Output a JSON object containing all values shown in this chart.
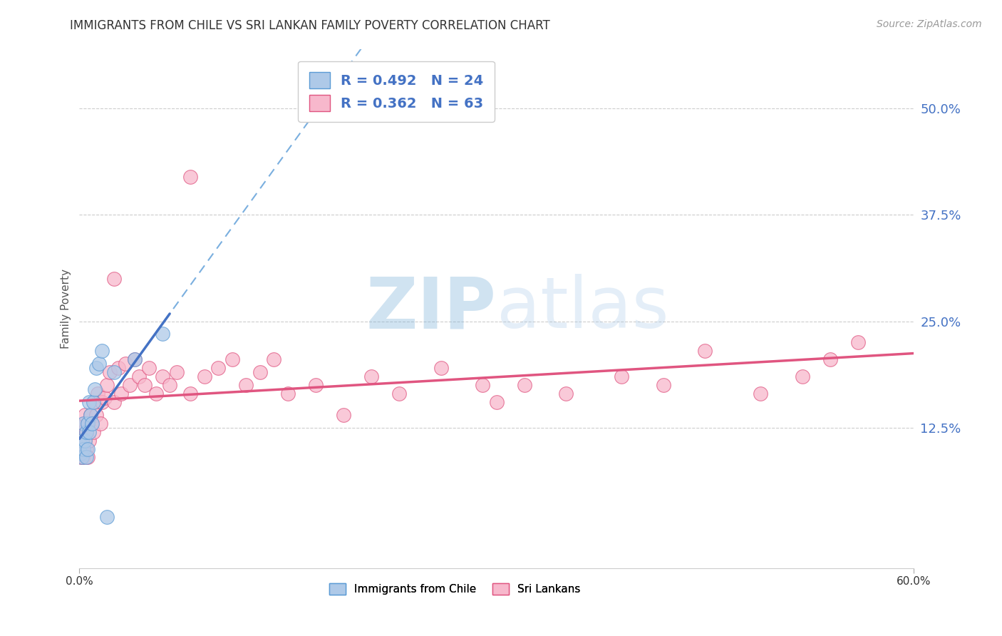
{
  "title": "IMMIGRANTS FROM CHILE VS SRI LANKAN FAMILY POVERTY CORRELATION CHART",
  "source": "Source: ZipAtlas.com",
  "ylabel": "Family Poverty",
  "xlim": [
    0,
    0.6
  ],
  "ylim": [
    -0.04,
    0.57
  ],
  "yticks": [
    0.125,
    0.25,
    0.375,
    0.5
  ],
  "ytick_labels": [
    "12.5%",
    "25.0%",
    "37.5%",
    "50.0%"
  ],
  "xtick_labels": [
    "0.0%",
    "60.0%"
  ],
  "xtick_pos": [
    0.0,
    0.6
  ],
  "chile_color": "#aec9e8",
  "chile_edge_color": "#5b9bd5",
  "srilanka_color": "#f7b8cc",
  "srilanka_edge_color": "#e05580",
  "chile_line_color": "#4472c4",
  "srilanka_line_color": "#e05580",
  "dashed_line_color": "#7aafdf",
  "chile_R": 0.492,
  "chile_N": 24,
  "srilanka_R": 0.362,
  "srilanka_N": 63,
  "watermark_zip": "ZIP",
  "watermark_atlas": "atlas",
  "background_color": "#ffffff",
  "grid_color": "#cccccc",
  "chile_x": [
    0.001,
    0.001,
    0.002,
    0.002,
    0.003,
    0.003,
    0.004,
    0.005,
    0.005,
    0.006,
    0.006,
    0.007,
    0.007,
    0.008,
    0.009,
    0.01,
    0.011,
    0.012,
    0.014,
    0.016,
    0.02,
    0.025,
    0.04,
    0.06
  ],
  "chile_y": [
    0.095,
    0.105,
    0.09,
    0.11,
    0.1,
    0.13,
    0.11,
    0.09,
    0.12,
    0.13,
    0.1,
    0.12,
    0.155,
    0.14,
    0.13,
    0.155,
    0.17,
    0.195,
    0.2,
    0.215,
    0.02,
    0.19,
    0.205,
    0.235
  ],
  "srilanka_x": [
    0.001,
    0.001,
    0.002,
    0.002,
    0.003,
    0.003,
    0.004,
    0.004,
    0.005,
    0.005,
    0.006,
    0.006,
    0.007,
    0.008,
    0.009,
    0.01,
    0.011,
    0.012,
    0.013,
    0.015,
    0.016,
    0.018,
    0.02,
    0.022,
    0.025,
    0.028,
    0.03,
    0.033,
    0.036,
    0.04,
    0.043,
    0.047,
    0.05,
    0.055,
    0.06,
    0.065,
    0.07,
    0.08,
    0.09,
    0.1,
    0.11,
    0.12,
    0.13,
    0.14,
    0.15,
    0.17,
    0.19,
    0.21,
    0.23,
    0.26,
    0.29,
    0.32,
    0.35,
    0.39,
    0.42,
    0.45,
    0.49,
    0.52,
    0.54,
    0.56,
    0.3,
    0.08,
    0.025
  ],
  "srilanka_y": [
    0.09,
    0.11,
    0.1,
    0.12,
    0.09,
    0.13,
    0.11,
    0.14,
    0.1,
    0.12,
    0.13,
    0.09,
    0.11,
    0.14,
    0.13,
    0.12,
    0.155,
    0.14,
    0.165,
    0.13,
    0.155,
    0.16,
    0.175,
    0.19,
    0.155,
    0.195,
    0.165,
    0.2,
    0.175,
    0.205,
    0.185,
    0.175,
    0.195,
    0.165,
    0.185,
    0.175,
    0.19,
    0.165,
    0.185,
    0.195,
    0.205,
    0.175,
    0.19,
    0.205,
    0.165,
    0.175,
    0.14,
    0.185,
    0.165,
    0.195,
    0.175,
    0.175,
    0.165,
    0.185,
    0.175,
    0.215,
    0.165,
    0.185,
    0.205,
    0.225,
    0.155,
    0.42,
    0.3
  ]
}
